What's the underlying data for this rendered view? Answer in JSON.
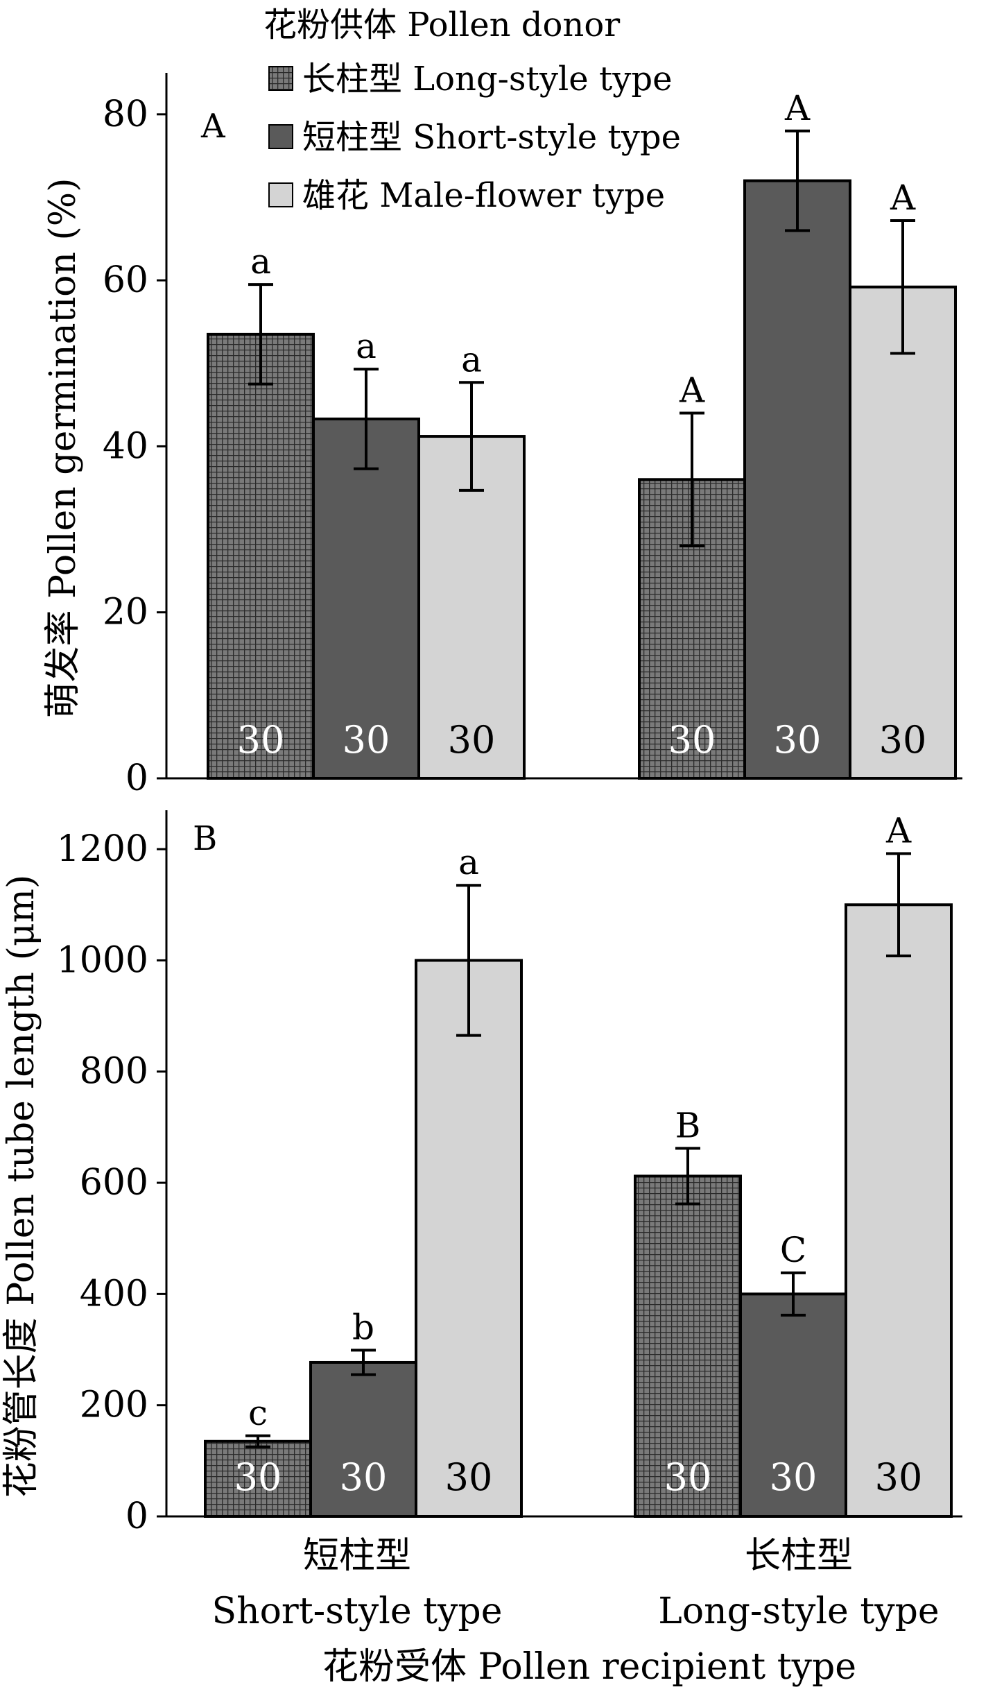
{
  "chart_data": [
    {
      "type": "bar",
      "panel_label": "A",
      "ylabel": "萌发率 Pollen germination (%)",
      "ylim": [
        0,
        85
      ],
      "yticks": [
        0,
        20,
        40,
        60,
        80
      ],
      "categories": [
        "短柱型 Short-style type",
        "长柱型 Long-style type"
      ],
      "series": [
        {
          "name": "长柱型 Long-style type",
          "values": [
            53.5,
            36.0
          ],
          "errors": [
            6.0,
            8.0
          ],
          "letters": [
            "a",
            "A"
          ],
          "n": [
            "30",
            "30"
          ]
        },
        {
          "name": "短柱型 Short-style type",
          "values": [
            43.3,
            72.0
          ],
          "errors": [
            6.0,
            6.0
          ],
          "letters": [
            "a",
            "A"
          ],
          "n": [
            "30",
            "30"
          ]
        },
        {
          "name": "雄花 Male-flower type",
          "values": [
            41.2,
            59.2
          ],
          "errors": [
            6.5,
            8.0
          ],
          "letters": [
            "a",
            "A"
          ],
          "n": [
            "30",
            "30"
          ]
        }
      ],
      "legend": {
        "title": "花粉供体 Pollen donor",
        "entries": [
          "长柱型 Long-style type",
          "短柱型 Short-style type",
          "雄花 Male-flower type"
        ],
        "placement": "top-center"
      }
    },
    {
      "type": "bar",
      "panel_label": "B",
      "ylabel": "花粉管长度 Pollen tube length (μm)",
      "ylim": [
        0,
        1270
      ],
      "yticks": [
        0,
        200,
        400,
        600,
        800,
        1000,
        1200
      ],
      "categories": [
        "短柱型 Short-style type",
        "长柱型 Long-style type"
      ],
      "series": [
        {
          "name": "长柱型 Long-style type",
          "values": [
            135,
            612
          ],
          "errors": [
            10,
            50
          ],
          "letters": [
            "c",
            "B"
          ],
          "n": [
            "30",
            "30"
          ]
        },
        {
          "name": "短柱型 Short-style type",
          "values": [
            277,
            400
          ],
          "errors": [
            22,
            38
          ],
          "letters": [
            "b",
            "C"
          ],
          "n": [
            "30",
            "30"
          ]
        },
        {
          "name": "雄花 Male-flower type",
          "values": [
            1000,
            1100
          ],
          "errors": [
            135,
            92
          ],
          "letters": [
            "a",
            "A"
          ],
          "n": [
            "30",
            "30"
          ]
        }
      ],
      "xtick_labels": [
        {
          "zh": "短柱型",
          "en": "Short-style type"
        },
        {
          "zh": "长柱型",
          "en": "Long-style type"
        }
      ],
      "xlabel": "花粉受体 Pollen recipient type"
    }
  ],
  "colors": {
    "long_style": "#6b6b6b",
    "short_style": "#5a5a5a",
    "male_flower": "#d4d4d4",
    "axis": "#000000",
    "n_label": "#ffffff"
  }
}
